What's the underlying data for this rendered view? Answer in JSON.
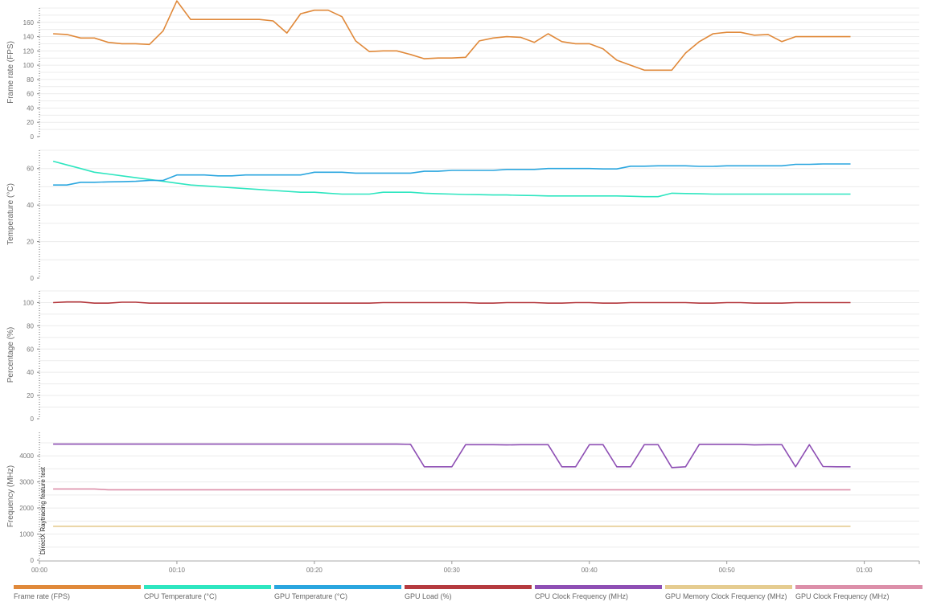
{
  "chart_data": {
    "type": "line",
    "x_unit": "mm:ss",
    "x_ticks": [
      "00:00",
      "00:10",
      "00:20",
      "00:30",
      "00:40",
      "00:50",
      "01:00"
    ],
    "xlim": [
      0,
      64
    ],
    "marker_label": "DirectX Raytracing feature test",
    "marker_x": 0,
    "panels": [
      {
        "ylabel": "Frame rate (FPS)",
        "ylim": [
          0,
          180
        ],
        "y_ticks": [
          0,
          20,
          40,
          60,
          80,
          100,
          120,
          140,
          160
        ],
        "series": [
          {
            "name": "Frame rate (FPS)",
            "color": "#e0893a",
            "x": [
              1,
              2,
              3,
              4,
              5,
              6,
              7,
              8,
              9,
              10,
              11,
              12,
              13,
              14,
              15,
              16,
              17,
              18,
              19,
              20,
              21,
              22,
              23,
              24,
              25,
              26,
              27,
              28,
              29,
              30,
              31,
              32,
              33,
              34,
              35,
              36,
              37,
              38,
              39,
              40,
              41,
              42,
              43,
              44,
              45,
              46,
              47,
              48,
              49,
              50,
              51,
              52,
              53,
              54,
              55,
              56,
              57,
              58,
              59
            ],
            "y": [
              144,
              143,
              138,
              138,
              132,
              130,
              130,
              129,
              148,
              190,
              164,
              164,
              164,
              164,
              164,
              164,
              162,
              145,
              172,
              177,
              177,
              168,
              134,
              119,
              120,
              120,
              115,
              109,
              110,
              110,
              111,
              134,
              138,
              140,
              139,
              132,
              144,
              133,
              130,
              130,
              123,
              107,
              100,
              93,
              93,
              93,
              117,
              133,
              144,
              146,
              146,
              142,
              143,
              133,
              140,
              140,
              140,
              140,
              140
            ]
          }
        ]
      },
      {
        "ylabel": "Temperature (°C)",
        "ylim": [
          0,
          70
        ],
        "y_ticks": [
          0,
          20,
          40,
          60
        ],
        "series": [
          {
            "name": "CPU Temperature (°C)",
            "color": "#2ee6c0",
            "x": [
              1,
              2,
              3,
              4,
              5,
              6,
              7,
              8,
              9,
              10,
              11,
              12,
              13,
              14,
              15,
              16,
              17,
              18,
              19,
              20,
              21,
              22,
              23,
              24,
              25,
              26,
              27,
              28,
              29,
              30,
              31,
              32,
              33,
              34,
              35,
              36,
              37,
              38,
              39,
              40,
              41,
              42,
              43,
              44,
              45,
              46,
              47,
              48,
              49,
              50,
              51,
              52,
              53,
              54,
              55,
              56,
              57,
              58,
              59
            ],
            "y": [
              64,
              62,
              60,
              58,
              57,
              56,
              55,
              54,
              53,
              52,
              51,
              50.5,
              50,
              49.5,
              49,
              48.5,
              48,
              47.5,
              47,
              47,
              46.5,
              46,
              46,
              46,
              47,
              47,
              47,
              46.5,
              46.2,
              46,
              45.8,
              45.7,
              45.5,
              45.5,
              45.3,
              45.2,
              45,
              45,
              45,
              45,
              45,
              45,
              44.8,
              44.6,
              44.6,
              46.5,
              46.3,
              46.2,
              46,
              46,
              46,
              46,
              46,
              46,
              46,
              46,
              46,
              46,
              46
            ]
          },
          {
            "name": "GPU Temperature (°C)",
            "color": "#2aa6df",
            "x": [
              1,
              2,
              3,
              4,
              5,
              6,
              7,
              8,
              9,
              10,
              11,
              12,
              13,
              14,
              15,
              16,
              17,
              18,
              19,
              20,
              21,
              22,
              23,
              24,
              25,
              26,
              27,
              28,
              29,
              30,
              31,
              32,
              33,
              34,
              35,
              36,
              37,
              38,
              39,
              40,
              41,
              42,
              43,
              44,
              45,
              46,
              47,
              48,
              49,
              50,
              51,
              52,
              53,
              54,
              55,
              56,
              57,
              58,
              59
            ],
            "y": [
              51,
              51,
              52.5,
              52.5,
              52.7,
              52.8,
              53,
              53.5,
              53.5,
              56.5,
              56.5,
              56.5,
              56,
              56,
              56.5,
              56.5,
              56.5,
              56.5,
              56.5,
              58,
              58,
              58,
              57.5,
              57.5,
              57.5,
              57.5,
              57.5,
              58.5,
              58.5,
              59,
              59,
              59,
              59,
              59.5,
              59.5,
              59.5,
              60,
              60,
              60,
              60,
              59.8,
              59.8,
              61.3,
              61.3,
              61.5,
              61.5,
              61.5,
              61.2,
              61.2,
              61.5,
              61.5,
              61.5,
              61.5,
              61.5,
              62.3,
              62.3,
              62.5,
              62.5,
              62.5
            ]
          }
        ]
      },
      {
        "ylabel": "Percentage (%)",
        "ylim": [
          0,
          110
        ],
        "y_ticks": [
          0,
          20,
          40,
          60,
          80,
          100
        ],
        "series": [
          {
            "name": "GPU Load (%)",
            "color": "#b53a3f",
            "x": [
              1,
              2,
              3,
              4,
              5,
              6,
              7,
              8,
              9,
              10,
              11,
              12,
              13,
              14,
              15,
              16,
              17,
              18,
              19,
              20,
              21,
              22,
              23,
              24,
              25,
              26,
              27,
              28,
              29,
              30,
              31,
              32,
              33,
              34,
              35,
              36,
              37,
              38,
              39,
              40,
              41,
              42,
              43,
              44,
              45,
              46,
              47,
              48,
              49,
              50,
              51,
              52,
              53,
              54,
              55,
              56,
              57,
              58,
              59
            ],
            "y": [
              100,
              100.5,
              100.5,
              99.5,
              99.5,
              100.3,
              100.3,
              99.5,
              99.5,
              99.5,
              99.5,
              99.5,
              99.5,
              99.5,
              99.5,
              99.5,
              99.5,
              99.5,
              99.5,
              99.5,
              99.5,
              99.5,
              99.5,
              99.5,
              100,
              100,
              100,
              100,
              100,
              100,
              100,
              99.5,
              99.5,
              100,
              100,
              100,
              99.5,
              99.5,
              100,
              100,
              99.5,
              99.5,
              100,
              100,
              100,
              100,
              100,
              99.5,
              99.5,
              100,
              100,
              99.5,
              99.5,
              99.5,
              100,
              100,
              100,
              100,
              100
            ]
          }
        ]
      },
      {
        "ylabel": "Frequency (MHz)",
        "ylim": [
          0,
          4900
        ],
        "y_ticks": [
          0,
          1000,
          2000,
          3000,
          4000
        ],
        "series": [
          {
            "name": "CPU Clock Frequency (MHz)",
            "color": "#8e4fb4",
            "x": [
              1,
              26,
              27,
              28,
              29,
              30,
              31,
              32,
              33,
              34,
              35,
              36,
              37,
              38,
              39,
              40,
              41,
              42,
              43,
              44,
              45,
              46,
              47,
              48,
              49,
              50,
              51,
              52,
              53,
              54,
              55,
              56,
              57,
              58,
              59
            ],
            "y": [
              4450,
              4450,
              4440,
              3580,
              3580,
              3580,
              4430,
              4430,
              4430,
              4420,
              4430,
              4430,
              4430,
              3580,
              3580,
              4430,
              4430,
              3580,
              3580,
              4430,
              4430,
              3550,
              3580,
              4440,
              4440,
              4440,
              4440,
              4420,
              4430,
              4430,
              3580,
              4430,
              3590,
              3580,
              3580
            ]
          },
          {
            "name": "GPU Memory Clock Frequency (MHz)",
            "color": "#e5cc90",
            "x": [
              1,
              59
            ],
            "y": [
              1300,
              1300
            ]
          },
          {
            "name": "GPU Clock Frequency (MHz)",
            "color": "#dc8fa9",
            "x": [
              1,
              4,
              5,
              59
            ],
            "y": [
              2730,
              2730,
              2700,
              2700
            ]
          }
        ]
      }
    ],
    "legend": [
      {
        "name": "Frame rate (FPS)",
        "color": "#e0893a"
      },
      {
        "name": "CPU Temperature (°C)",
        "color": "#2ee6c0"
      },
      {
        "name": "GPU Temperature (°C)",
        "color": "#2aa6df"
      },
      {
        "name": "GPU Load (%)",
        "color": "#b53a3f"
      },
      {
        "name": "CPU Clock Frequency (MHz)",
        "color": "#8e4fb4"
      },
      {
        "name": "GPU Memory Clock Frequency (MHz)",
        "color": "#e5cc90"
      },
      {
        "name": "GPU Clock Frequency (MHz)",
        "color": "#dc8fa9"
      }
    ],
    "legend_position": "bottom",
    "grid": true
  }
}
